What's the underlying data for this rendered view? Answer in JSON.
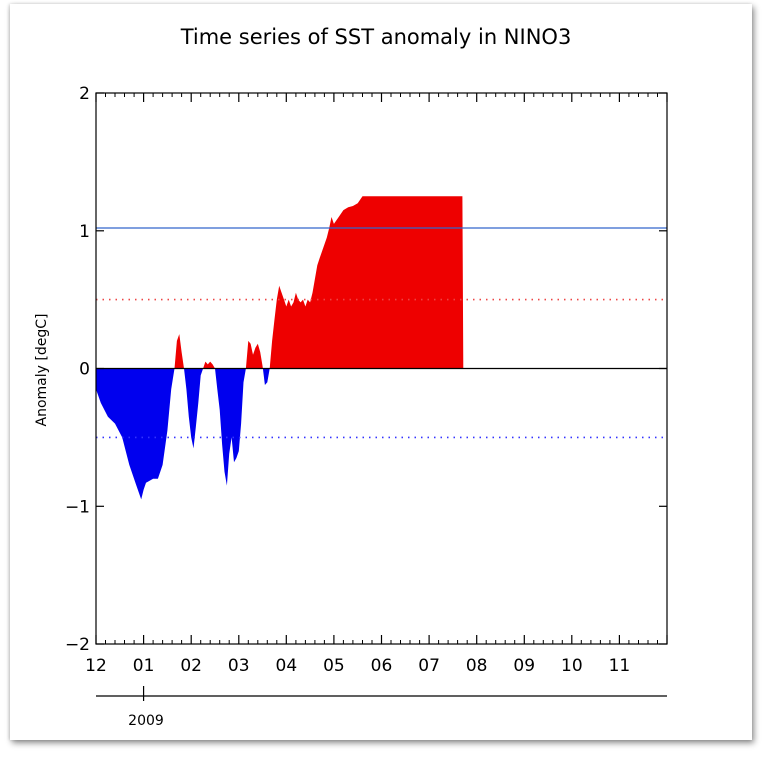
{
  "chart_data": {
    "type": "area",
    "title": "Time series of SST anomaly in NINO3",
    "xlabel": "",
    "ylabel": "Anomaly [degC]",
    "ylim": [
      -2,
      2
    ],
    "xlim": [
      0,
      12
    ],
    "year_label": "2009",
    "y_ticks": [
      -2,
      -1,
      0,
      1,
      2
    ],
    "y_tick_labels": [
      "−2",
      "−1",
      "0",
      "1",
      "2"
    ],
    "x_tick_labels": [
      "12",
      "01",
      "02",
      "03",
      "04",
      "05",
      "06",
      "07",
      "08",
      "09",
      "10",
      "11"
    ],
    "grid": false,
    "legend": "none",
    "colors": {
      "positive": "#ee0000",
      "negative": "#0000ee",
      "threshold_line": "#3366cc",
      "upper_dotted": "#ee4444",
      "lower_dotted": "#3333ff"
    },
    "reference_lines": [
      {
        "style": "solid",
        "value": 1.02
      },
      {
        "style": "dotted",
        "value": 0.5
      },
      {
        "style": "dotted",
        "value": -0.5
      },
      {
        "style": "solid-black",
        "value": 0
      }
    ],
    "series": [
      {
        "x": [
          0.0,
          0.1,
          0.25,
          0.4,
          0.55,
          0.7,
          0.85,
          0.95,
          1.0,
          1.05,
          1.1,
          1.2,
          1.3,
          1.4,
          1.5,
          1.58,
          1.65,
          1.7,
          1.75,
          1.8,
          1.85,
          1.9,
          1.95,
          2.0,
          2.05,
          2.1,
          2.15,
          2.2,
          2.25,
          2.3,
          2.35,
          2.4,
          2.45,
          2.5,
          2.55,
          2.6,
          2.65,
          2.7,
          2.75,
          2.8,
          2.85,
          2.9,
          2.95,
          3.0,
          3.05,
          3.1,
          3.15,
          3.2,
          3.25,
          3.3,
          3.35,
          3.4,
          3.45,
          3.5,
          3.55,
          3.6,
          3.65,
          3.7,
          3.75,
          3.8,
          3.85,
          3.9,
          3.95,
          4.0,
          4.05,
          4.1,
          4.15,
          4.2,
          4.25,
          4.3,
          4.35,
          4.4,
          4.45,
          4.5,
          4.55,
          4.6,
          4.65,
          4.7,
          4.75,
          4.8,
          4.85,
          4.9,
          4.95,
          5.0,
          5.1,
          5.2,
          5.3,
          5.4,
          5.5,
          5.6,
          5.7,
          5.8,
          5.9,
          6.0,
          6.1,
          6.2,
          6.3,
          6.4,
          6.5,
          6.6,
          6.7,
          6.8,
          6.9,
          7.0,
          7.1,
          7.2,
          7.3,
          7.4,
          7.5,
          7.6,
          7.7,
          7.72
        ],
        "y": [
          -0.15,
          -0.25,
          -0.35,
          -0.4,
          -0.5,
          -0.7,
          -0.85,
          -0.95,
          -0.88,
          -0.83,
          -0.82,
          -0.8,
          -0.8,
          -0.7,
          -0.45,
          -0.15,
          0.0,
          0.2,
          0.25,
          0.12,
          0.0,
          -0.15,
          -0.35,
          -0.5,
          -0.58,
          -0.42,
          -0.25,
          -0.05,
          0.0,
          0.05,
          0.03,
          0.05,
          0.03,
          0.0,
          -0.15,
          -0.3,
          -0.55,
          -0.75,
          -0.85,
          -0.62,
          -0.5,
          -0.68,
          -0.65,
          -0.6,
          -0.4,
          -0.1,
          0.0,
          0.2,
          0.18,
          0.1,
          0.15,
          0.18,
          0.12,
          0.02,
          -0.12,
          -0.1,
          0.0,
          0.2,
          0.35,
          0.5,
          0.6,
          0.55,
          0.5,
          0.45,
          0.5,
          0.45,
          0.48,
          0.55,
          0.5,
          0.48,
          0.5,
          0.45,
          0.5,
          0.48,
          0.55,
          0.65,
          0.75,
          0.8,
          0.85,
          0.9,
          0.95,
          1.02,
          1.1,
          1.05,
          1.1,
          1.15,
          1.17,
          1.18,
          1.2,
          1.25,
          1.25,
          1.25,
          1.25,
          1.25,
          1.25,
          1.25,
          1.25,
          1.25,
          1.25,
          1.25,
          1.25,
          1.25,
          1.25,
          1.25,
          1.25,
          1.25,
          1.25,
          1.25,
          1.25,
          1.25,
          1.25,
          0.0
        ]
      }
    ]
  }
}
